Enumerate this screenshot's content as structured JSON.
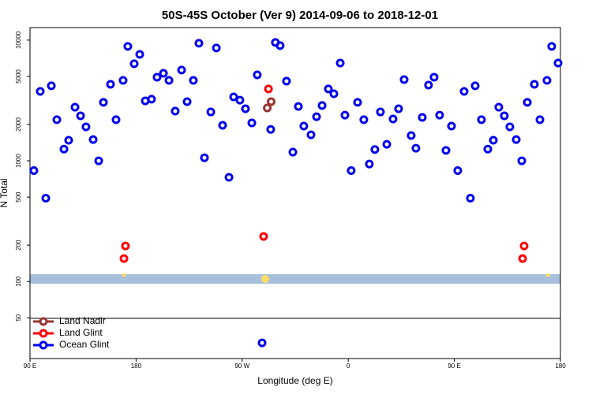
{
  "chart_data": {
    "type": "scatter",
    "title": "50S-45S October (Ver 9)   2014-09-06 to 2018-12-01",
    "xlabel": "Longitude (deg E)",
    "ylabel": "N Total",
    "log_y": true,
    "legend": "lower left",
    "xlim": [
      90,
      540
    ],
    "ylim": [
      23,
      12700
    ],
    "xticks": [
      {
        "value": 90,
        "label": "90 E"
      },
      180,
      {
        "value": 270,
        "label": "90 W"
      },
      {
        "value": 360,
        "label": "0"
      },
      {
        "value": 450,
        "label": "90 E"
      },
      {
        "value": 540,
        "label": "180"
      }
    ],
    "yticks": [
      50,
      100,
      200,
      500,
      1000,
      2000,
      5000,
      10000
    ],
    "series": [
      {
        "name": "Land Nadir",
        "color": "#993333",
        "x": [
          291.3,
          294.6
        ],
        "values": [
          2740,
          3090
        ]
      },
      {
        "name": "Land Glint",
        "color": "#ff0000",
        "x": [
          169.7,
          171.0,
          288.2,
          292.3,
          507.9,
          509.2
        ],
        "values": [
          155,
          197,
          236,
          3940,
          155,
          197
        ]
      },
      {
        "name": "Ocean Glint",
        "color": "#0000ee",
        "x": [
          93.3,
          98.7,
          103.4,
          108.1,
          112.8,
          118.8,
          122.8,
          128.2,
          132.9,
          137.5,
          143.6,
          148.3,
          152.3,
          158.3,
          163.0,
          169.0,
          173.0,
          178.4,
          183.1,
          187.8,
          193.1,
          197.8,
          203.2,
          207.9,
          213.2,
          218.6,
          223.3,
          228.6,
          233.3,
          238.0,
          243.4,
          248.1,
          253.4,
          258.8,
          262.8,
          268.1,
          272.8,
          278.2,
          282.8,
          286.9,
          294.2,
          298.2,
          302.2,
          307.6,
          313.0,
          317.7,
          322.3,
          328.4,
          333.1,
          337.8,
          343.1,
          347.8,
          353.2,
          357.2,
          362.5,
          367.9,
          373.2,
          377.9,
          382.6,
          387.3,
          392.7,
          398.0,
          402.7,
          407.4,
          413.4,
          417.4,
          422.8,
          428.1,
          432.8,
          437.5,
          442.9,
          447.6,
          452.9,
          458.3,
          463.6,
          467.7,
          473.0,
          478.4,
          483.1,
          487.7,
          492.4,
          497.1,
          502.5,
          507.2,
          511.9,
          517.9,
          522.6,
          528.6,
          532.6,
          538.0
        ],
        "values": [
          830,
          3760,
          490,
          4180,
          2190,
          1250,
          1480,
          2780,
          2360,
          1910,
          1500,
          1000,
          3050,
          4300,
          2190,
          4640,
          8870,
          6370,
          7620,
          3140,
          3240,
          4930,
          5310,
          4640,
          2580,
          5650,
          3090,
          4640,
          9420,
          1060,
          2540,
          8610,
          1970,
          730,
          3380,
          3180,
          2700,
          2060,
          5150,
          31,
          1820,
          9560,
          9000,
          4570,
          1180,
          2820,
          1940,
          1640,
          2320,
          2870,
          3940,
          3590,
          6460,
          2390,
          830,
          3050,
          2190,
          940,
          1240,
          2540,
          1370,
          2220,
          2700,
          4710,
          1620,
          1270,
          2290,
          4240,
          4930,
          2390,
          1220,
          1940,
          830,
          3760,
          490,
          4180,
          2190,
          1250,
          1480,
          2780,
          2360,
          1910,
          1500,
          1000,
          3050,
          4300,
          2190,
          4640,
          8870,
          6460
        ]
      }
    ]
  }
}
